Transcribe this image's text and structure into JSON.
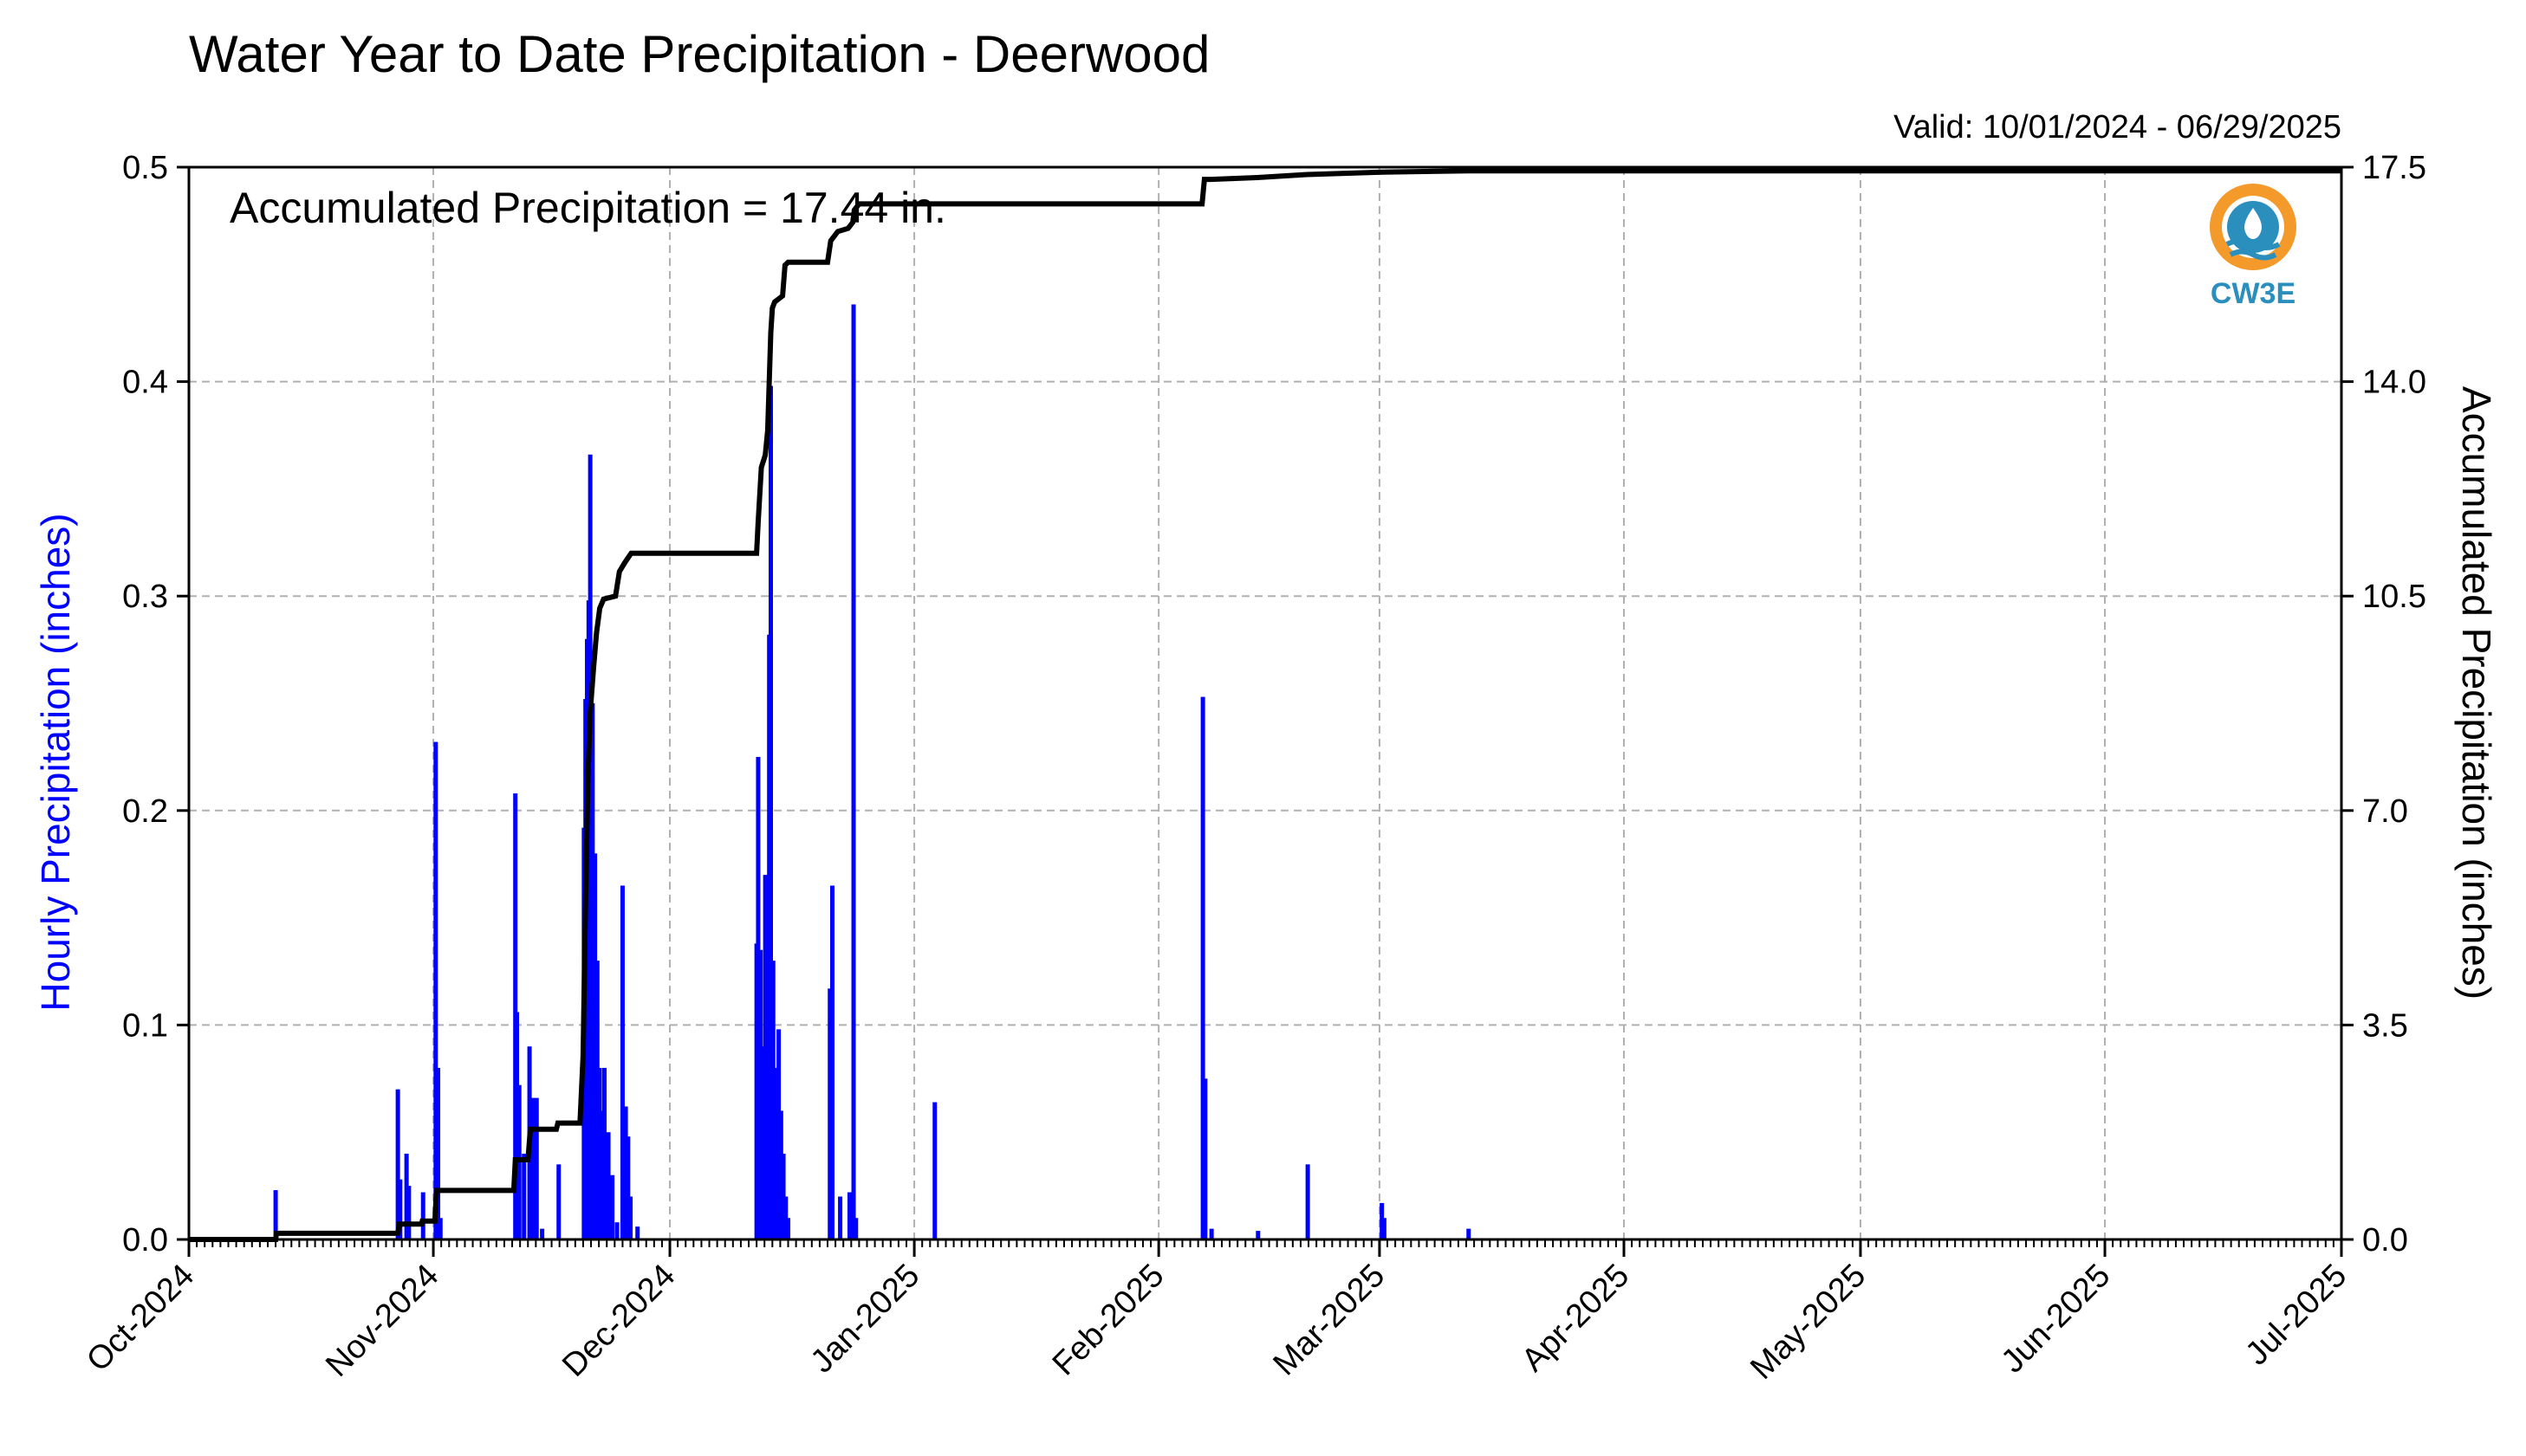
{
  "chart_data": {
    "type": "bar",
    "title": "Water Year to Date Precipitation - Deerwood",
    "subtitle": "Valid: 10/01/2024 - 06/29/2025",
    "annotation": "Accumulated Precipitation = 17.44 in.",
    "logo_text": "CW3E",
    "ylabel_left": "Hourly Precipitation (inches)",
    "ylabel_right": "Accumulated Precipitation (inches)",
    "x_ticks": [
      "Oct-2024",
      "Nov-2024",
      "Dec-2024",
      "Jan-2025",
      "Feb-2025",
      "Mar-2025",
      "Apr-2025",
      "May-2025",
      "Jun-2025",
      "Jul-2025"
    ],
    "x_tick_days": [
      0,
      31,
      61,
      92,
      123,
      151,
      182,
      212,
      243,
      273
    ],
    "x_range_days": [
      0,
      273
    ],
    "y_left_ticks": [
      "0.0",
      "0.1",
      "0.2",
      "0.3",
      "0.4",
      "0.5"
    ],
    "y_left_range": [
      0,
      0.5
    ],
    "y_right_ticks": [
      "0.0",
      "3.5",
      "7.0",
      "10.5",
      "14.0",
      "17.5"
    ],
    "y_right_range": [
      0,
      17.5
    ],
    "grid": true,
    "colors": {
      "hourly": "#0000ff",
      "accumulated": "#000000",
      "grid": "#b0b0b0",
      "logo_orange": "#f39a2b",
      "logo_blue": "#2a8fbd"
    },
    "series": [
      {
        "name": "Hourly Precipitation (inches)",
        "axis": "left",
        "type": "bar",
        "points": [
          [
            11.0,
            0.023
          ],
          [
            26.5,
            0.07
          ],
          [
            26.8,
            0.028
          ],
          [
            27.6,
            0.04
          ],
          [
            27.9,
            0.025
          ],
          [
            29.7,
            0.022
          ],
          [
            31.3,
            0.232
          ],
          [
            31.6,
            0.08
          ],
          [
            31.9,
            0.01
          ],
          [
            41.4,
            0.208
          ],
          [
            41.6,
            0.106
          ],
          [
            41.9,
            0.072
          ],
          [
            42.5,
            0.04
          ],
          [
            43.2,
            0.09
          ],
          [
            43.6,
            0.066
          ],
          [
            44.1,
            0.066
          ],
          [
            44.8,
            0.005
          ],
          [
            46.9,
            0.035
          ],
          [
            50.1,
            0.192
          ],
          [
            50.3,
            0.252
          ],
          [
            50.5,
            0.28
          ],
          [
            50.7,
            0.298
          ],
          [
            50.9,
            0.366
          ],
          [
            51.2,
            0.25
          ],
          [
            51.5,
            0.18
          ],
          [
            51.8,
            0.13
          ],
          [
            52.1,
            0.08
          ],
          [
            52.4,
            0.06
          ],
          [
            52.7,
            0.08
          ],
          [
            53.2,
            0.05
          ],
          [
            53.7,
            0.03
          ],
          [
            54.3,
            0.008
          ],
          [
            55.0,
            0.165
          ],
          [
            55.4,
            0.062
          ],
          [
            55.7,
            0.048
          ],
          [
            56.0,
            0.02
          ],
          [
            56.9,
            0.006
          ],
          [
            72.0,
            0.138
          ],
          [
            72.2,
            0.225
          ],
          [
            72.5,
            0.135
          ],
          [
            72.8,
            0.09
          ],
          [
            73.1,
            0.17
          ],
          [
            73.3,
            0.13
          ],
          [
            73.6,
            0.282
          ],
          [
            73.8,
            0.398
          ],
          [
            74.1,
            0.13
          ],
          [
            74.4,
            0.08
          ],
          [
            74.8,
            0.098
          ],
          [
            75.1,
            0.06
          ],
          [
            75.4,
            0.04
          ],
          [
            75.7,
            0.02
          ],
          [
            76.0,
            0.01
          ],
          [
            81.3,
            0.117
          ],
          [
            81.6,
            0.165
          ],
          [
            82.6,
            0.02
          ],
          [
            83.8,
            0.022
          ],
          [
            84.3,
            0.436
          ],
          [
            84.6,
            0.01
          ],
          [
            94.6,
            0.064
          ],
          [
            128.6,
            0.253
          ],
          [
            128.9,
            0.075
          ],
          [
            129.7,
            0.005
          ],
          [
            135.6,
            0.004
          ],
          [
            141.9,
            0.035
          ],
          [
            151.3,
            0.017
          ],
          [
            151.6,
            0.01
          ],
          [
            162.3,
            0.005
          ]
        ]
      },
      {
        "name": "Accumulated Precipitation (inches)",
        "axis": "right",
        "type": "step",
        "points": [
          [
            0,
            0.0
          ],
          [
            11.0,
            0.0
          ],
          [
            11.1,
            0.1
          ],
          [
            26.5,
            0.1
          ],
          [
            26.7,
            0.25
          ],
          [
            29.5,
            0.25
          ],
          [
            29.6,
            0.3
          ],
          [
            31.2,
            0.3
          ],
          [
            31.4,
            0.8
          ],
          [
            41.2,
            0.8
          ],
          [
            41.4,
            1.3
          ],
          [
            43.0,
            1.3
          ],
          [
            43.3,
            1.8
          ],
          [
            46.6,
            1.8
          ],
          [
            46.8,
            1.9
          ],
          [
            49.6,
            1.9
          ],
          [
            50.0,
            3.0
          ],
          [
            50.3,
            5.5
          ],
          [
            50.6,
            7.5
          ],
          [
            50.9,
            8.6
          ],
          [
            51.3,
            9.3
          ],
          [
            51.7,
            9.9
          ],
          [
            52.1,
            10.3
          ],
          [
            52.6,
            10.45
          ],
          [
            54.1,
            10.5
          ],
          [
            54.6,
            10.9
          ],
          [
            55.3,
            11.05
          ],
          [
            56.1,
            11.2
          ],
          [
            72.0,
            11.2
          ],
          [
            72.2,
            11.7
          ],
          [
            72.6,
            12.6
          ],
          [
            73.1,
            12.8
          ],
          [
            73.4,
            13.2
          ],
          [
            73.6,
            14.0
          ],
          [
            73.8,
            14.8
          ],
          [
            74.0,
            15.2
          ],
          [
            74.3,
            15.3
          ],
          [
            75.3,
            15.4
          ],
          [
            75.6,
            15.9
          ],
          [
            76.0,
            15.95
          ],
          [
            81.0,
            15.95
          ],
          [
            81.4,
            16.3
          ],
          [
            82.3,
            16.45
          ],
          [
            83.6,
            16.5
          ],
          [
            84.2,
            16.6
          ],
          [
            84.4,
            16.8
          ],
          [
            85.0,
            16.9
          ],
          [
            128.5,
            16.9
          ],
          [
            128.8,
            17.3
          ],
          [
            129.6,
            17.3
          ],
          [
            135.5,
            17.33
          ],
          [
            141.8,
            17.38
          ],
          [
            151.3,
            17.42
          ],
          [
            162.3,
            17.44
          ],
          [
            273,
            17.44
          ]
        ]
      }
    ]
  }
}
